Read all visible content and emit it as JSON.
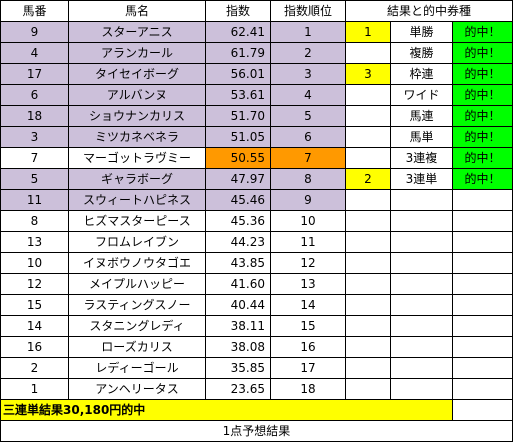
{
  "headers": {
    "umaban": "馬番",
    "bamei": "馬名",
    "shisu": "指数",
    "juni": "指数順位",
    "kekka": "結果と的中券種"
  },
  "horses": [
    {
      "umaban": "9",
      "name": "スターアニス",
      "index": "62.41",
      "rank": "1",
      "hl": "lav"
    },
    {
      "umaban": "4",
      "name": "アランカール",
      "index": "61.79",
      "rank": "2",
      "hl": "lav"
    },
    {
      "umaban": "17",
      "name": "タイセイボーグ",
      "index": "56.01",
      "rank": "3",
      "hl": "lav"
    },
    {
      "umaban": "6",
      "name": "アルバンヌ",
      "index": "53.61",
      "rank": "4",
      "hl": "lav"
    },
    {
      "umaban": "18",
      "name": "ショウナンカリス",
      "index": "51.70",
      "rank": "5",
      "hl": "lav"
    },
    {
      "umaban": "3",
      "name": "ミツカネベネラ",
      "index": "51.05",
      "rank": "6",
      "hl": "lav"
    },
    {
      "umaban": "7",
      "name": "マーゴットラヴミー",
      "index": "50.55",
      "rank": "7",
      "hl": "orange"
    },
    {
      "umaban": "5",
      "name": "ギャラボーグ",
      "index": "47.97",
      "rank": "8",
      "hl": "lav"
    },
    {
      "umaban": "11",
      "name": "スウィートハピネス",
      "index": "45.46",
      "rank": "9",
      "hl": "lav"
    },
    {
      "umaban": "8",
      "name": "ヒズマスターピース",
      "index": "45.36",
      "rank": "10",
      "hl": ""
    },
    {
      "umaban": "13",
      "name": "フロムレイブン",
      "index": "44.23",
      "rank": "11",
      "hl": ""
    },
    {
      "umaban": "10",
      "name": "イヌボウノウタゴエ",
      "index": "43.85",
      "rank": "12",
      "hl": ""
    },
    {
      "umaban": "12",
      "name": "メイプルハッピー",
      "index": "41.60",
      "rank": "13",
      "hl": ""
    },
    {
      "umaban": "15",
      "name": "ラスティングスノー",
      "index": "40.44",
      "rank": "14",
      "hl": ""
    },
    {
      "umaban": "14",
      "name": "スタニングレディ",
      "index": "38.11",
      "rank": "15",
      "hl": ""
    },
    {
      "umaban": "16",
      "name": "ローズカリス",
      "index": "38.08",
      "rank": "16",
      "hl": ""
    },
    {
      "umaban": "2",
      "name": "レディーゴール",
      "index": "35.85",
      "rank": "17",
      "hl": ""
    },
    {
      "umaban": "1",
      "name": "アンヘリータス",
      "index": "23.65",
      "rank": "18",
      "hl": ""
    }
  ],
  "results": [
    {
      "place": "1",
      "ticket": "単勝",
      "hit": "的中！"
    },
    {
      "place": "",
      "ticket": "複勝",
      "hit": "的中！"
    },
    {
      "place": "3",
      "ticket": "枠連",
      "hit": "的中！"
    },
    {
      "place": "",
      "ticket": "ワイド",
      "hit": "的中！"
    },
    {
      "place": "",
      "ticket": "馬連",
      "hit": "的中！"
    },
    {
      "place": "",
      "ticket": "馬単",
      "hit": "的中！"
    },
    {
      "place": "",
      "ticket": "3連複",
      "hit": "的中！"
    },
    {
      "place": "2",
      "ticket": "3連単",
      "hit": "的中！"
    }
  ],
  "banner": "三連単結果30,180円的中",
  "footer": "1点予想結果",
  "colors": {
    "lavender": "#ccc0da",
    "orange": "#ff9900",
    "yellow": "#ffff00",
    "green": "#00ff00"
  }
}
